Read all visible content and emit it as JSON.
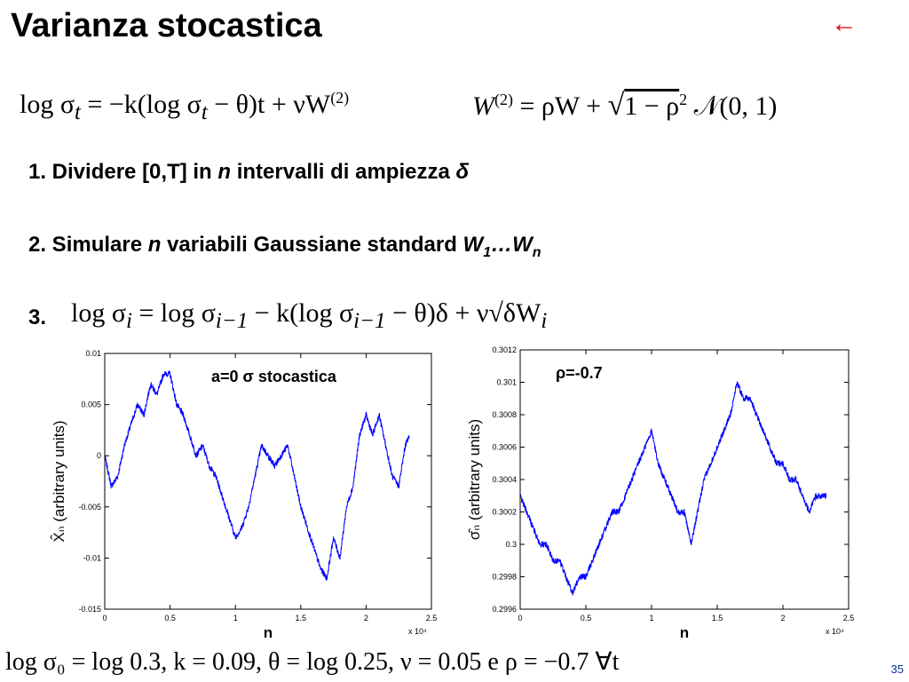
{
  "slide": {
    "title": "Varianza stocastica",
    "back_arrow": "←",
    "page_number": "35"
  },
  "equations": {
    "model_a": "log σ",
    "model_b": "t",
    "model_c": " = −k(log σ",
    "model_d": "t",
    "model_e": " − θ)t + νW",
    "model_f": "(2)",
    "corr_a": "W",
    "corr_b": "(2)",
    "corr_c": " = ρW + ",
    "corr_d": "√",
    "corr_e": "1 − ρ",
    "corr_f": "2",
    "corr_g": " 𝒩(0, 1)",
    "step3_a": "log σ",
    "step3_b": "i",
    "step3_c": " = log σ",
    "step3_d": "i−1",
    "step3_e": " − k(log σ",
    "step3_f": "i−1",
    "step3_g": " − θ)δ + ν√δW",
    "step3_h": "i",
    "params": "log σ₀ = log 0.3,  k = 0.09,  θ = log 0.25,  ν = 0.05 e ρ = −0.7 ∀t"
  },
  "steps": {
    "s1_a": "1. Dividere [0,T] in ",
    "s1_b": "n",
    "s1_c": " intervalli di ampiezza ",
    "s1_d": "δ",
    "s2_a": "2. Simulare ",
    "s2_b": "n",
    "s2_c": " variabili Gaussiane standard ",
    "s2_d": "W",
    "s2_e": "1",
    "s2_f": "…W",
    "s2_g": "n",
    "s3": "3."
  },
  "chart_data": [
    {
      "type": "line",
      "annotation": "a=0  σ stocastica",
      "xlabel": "n",
      "ylabel": "X̂ₙ (arbitrary units)",
      "x_multiplier": "x 10⁴",
      "xlim": [
        0,
        2.5
      ],
      "ylim": [
        -0.015,
        0.01
      ],
      "xticks": [
        "0",
        "0.5",
        "1",
        "1.5",
        "2",
        "2.5"
      ],
      "yticks": [
        "0.01",
        "0.005",
        "0",
        "-0.005",
        "-0.01",
        "-0.015"
      ],
      "color": "#0000ff",
      "grid": false,
      "x": [
        0,
        0.05,
        0.1,
        0.15,
        0.2,
        0.25,
        0.3,
        0.35,
        0.4,
        0.45,
        0.5,
        0.55,
        0.6,
        0.65,
        0.7,
        0.75,
        0.8,
        0.85,
        0.9,
        0.95,
        1.0,
        1.05,
        1.1,
        1.15,
        1.2,
        1.25,
        1.3,
        1.35,
        1.4,
        1.45,
        1.5,
        1.55,
        1.6,
        1.65,
        1.7,
        1.75,
        1.8,
        1.85,
        1.9,
        1.95,
        2.0,
        2.05,
        2.1,
        2.15,
        2.2,
        2.25,
        2.3,
        2.33
      ],
      "y": [
        0.0,
        -0.003,
        -0.002,
        0.001,
        0.003,
        0.005,
        0.004,
        0.007,
        0.006,
        0.008,
        0.008,
        0.005,
        0.004,
        0.002,
        0.0,
        0.001,
        -0.001,
        -0.002,
        -0.004,
        -0.006,
        -0.008,
        -0.007,
        -0.005,
        -0.002,
        0.001,
        0.0,
        -0.001,
        0.0,
        0.001,
        -0.002,
        -0.005,
        -0.007,
        -0.009,
        -0.011,
        -0.012,
        -0.008,
        -0.01,
        -0.005,
        -0.003,
        0.002,
        0.004,
        0.002,
        0.004,
        0.001,
        -0.002,
        -0.003,
        0.001,
        0.002
      ]
    },
    {
      "type": "line",
      "annotation": "ρ=-0.7",
      "xlabel": "n",
      "ylabel": "σ̂ₙ (arbitrary units)",
      "x_multiplier": "x 10⁴",
      "xlim": [
        0,
        2.5
      ],
      "ylim": [
        0.2996,
        0.3012
      ],
      "xticks": [
        "0",
        "0.5",
        "1",
        "1.5",
        "2",
        "2.5"
      ],
      "yticks": [
        "0.3012",
        "0.301",
        "0.3008",
        "0.3006",
        "0.3004",
        "0.3002",
        "0.3",
        "0.2998",
        "0.2996"
      ],
      "color": "#0000ff",
      "grid": false,
      "x": [
        0,
        0.05,
        0.1,
        0.15,
        0.2,
        0.25,
        0.3,
        0.35,
        0.4,
        0.45,
        0.5,
        0.55,
        0.6,
        0.65,
        0.7,
        0.75,
        0.8,
        0.85,
        0.9,
        0.95,
        1.0,
        1.05,
        1.1,
        1.15,
        1.2,
        1.25,
        1.3,
        1.35,
        1.4,
        1.45,
        1.5,
        1.55,
        1.6,
        1.65,
        1.7,
        1.75,
        1.8,
        1.85,
        1.9,
        1.95,
        2.0,
        2.05,
        2.1,
        2.15,
        2.2,
        2.25,
        2.3,
        2.33
      ],
      "y": [
        0.3003,
        0.3002,
        0.3001,
        0.3,
        0.3,
        0.2999,
        0.2999,
        0.2998,
        0.2997,
        0.2998,
        0.2998,
        0.2999,
        0.3,
        0.3001,
        0.3002,
        0.3002,
        0.3003,
        0.3004,
        0.3005,
        0.3006,
        0.3007,
        0.3005,
        0.3004,
        0.3003,
        0.3002,
        0.3002,
        0.3,
        0.3002,
        0.3004,
        0.3005,
        0.3006,
        0.3007,
        0.3008,
        0.301,
        0.3009,
        0.3009,
        0.3008,
        0.3007,
        0.3006,
        0.3005,
        0.3005,
        0.3004,
        0.3004,
        0.3003,
        0.3002,
        0.3003,
        0.3003,
        0.3003
      ]
    }
  ]
}
